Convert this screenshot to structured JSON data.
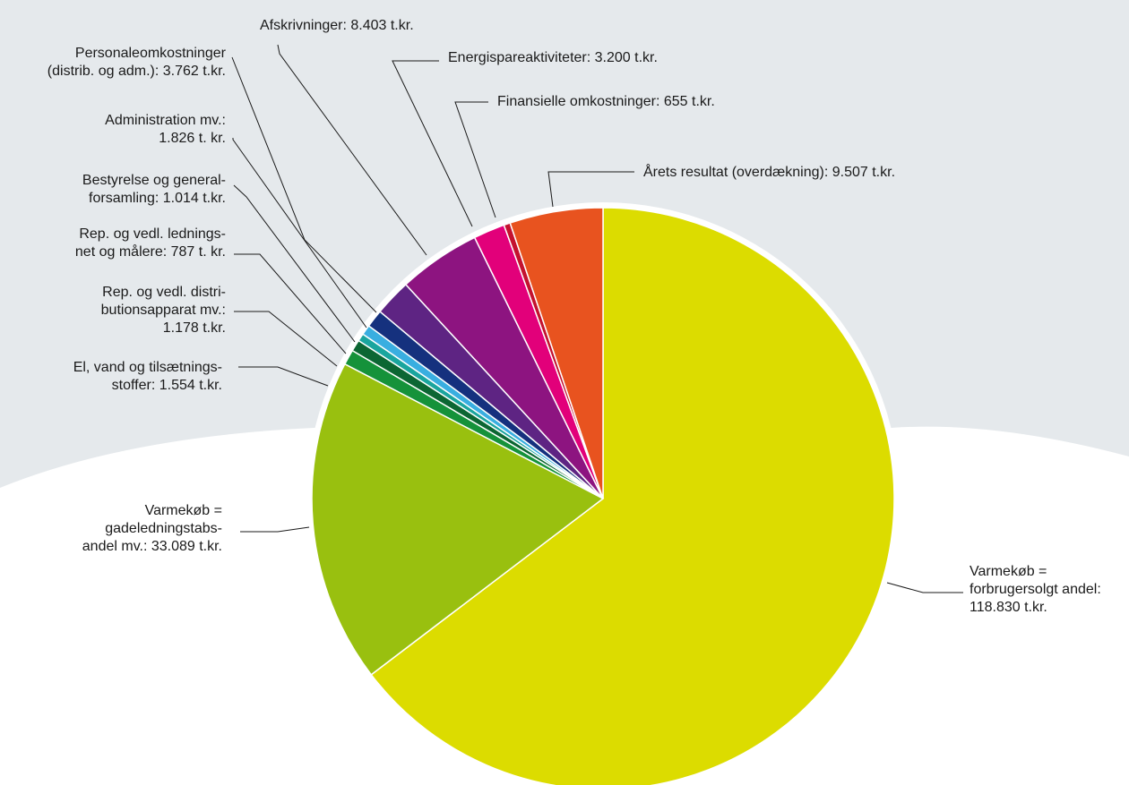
{
  "chart_data": {
    "type": "pie",
    "unit": "t.kr.",
    "slices": [
      {
        "label_lines": [
          "Varmekøb =",
          "forbrugersolgt andel:",
          "118.830 t.kr."
        ],
        "value": 118830,
        "color": "#dcdc00",
        "name": "Varmekøb = forbrugersolgt andel"
      },
      {
        "label_lines": [
          "Varmekøb =",
          "gadeledningstabs-",
          "andel mv.: 33.089 t.kr."
        ],
        "value": 33089,
        "color": "#99c00f",
        "name": "Varmekøb = gadeledningstabsandel mv."
      },
      {
        "label_lines": [
          "El, vand og tilsætnings-",
          "stoffer: 1.554 t.kr."
        ],
        "value": 1554,
        "color": "#15923a",
        "name": "El, vand og tilsætningsstoffer"
      },
      {
        "label_lines": [
          "Rep. og vedl. distri-",
          "butionsapparat mv.:",
          "1.178 t.kr."
        ],
        "value": 1178,
        "color": "#0c6633",
        "name": "Rep. og vedl. distributionsapparat mv."
      },
      {
        "label_lines": [
          "Rep. og vedl. lednings-",
          "net og målere: 787 t. kr."
        ],
        "value": 787,
        "color": "#1aa59e",
        "name": "Rep. og vedl. ledningsnet og målere"
      },
      {
        "label_lines": [
          "Bestyrelse og general-",
          "forsamling: 1.014 t.kr."
        ],
        "value": 1014,
        "color": "#39aee0",
        "name": "Bestyrelse og generalforsamling"
      },
      {
        "label_lines": [
          "Administration mv.:",
          "1.826 t. kr."
        ],
        "value": 1826,
        "color": "#15317e",
        "name": "Administration mv."
      },
      {
        "label_lines": [
          "Personaleomkostninger",
          "(distrib. og adm.): 3.762 t.kr."
        ],
        "value": 3762,
        "color": "#5e2483",
        "name": "Personaleomkostninger (distrib. og adm.)"
      },
      {
        "label_lines": [
          "Afskrivninger: 8.403 t.kr."
        ],
        "value": 8403,
        "color": "#8d1480",
        "name": "Afskrivninger"
      },
      {
        "label_lines": [
          "Energispareaktiviteter: 3.200 t.kr."
        ],
        "value": 3200,
        "color": "#e2007a",
        "name": "Energispareaktiviteter"
      },
      {
        "label_lines": [
          "Finansielle omkostninger: 655 t.kr."
        ],
        "value": 655,
        "color": "#c4122f",
        "name": "Finansielle omkostninger"
      },
      {
        "label_lines": [
          "Årets resultat (overdækning): 9.507 t.kr."
        ],
        "value": 9507,
        "color": "#e8531f",
        "name": "Årets resultat (overdækning)"
      }
    ]
  }
}
